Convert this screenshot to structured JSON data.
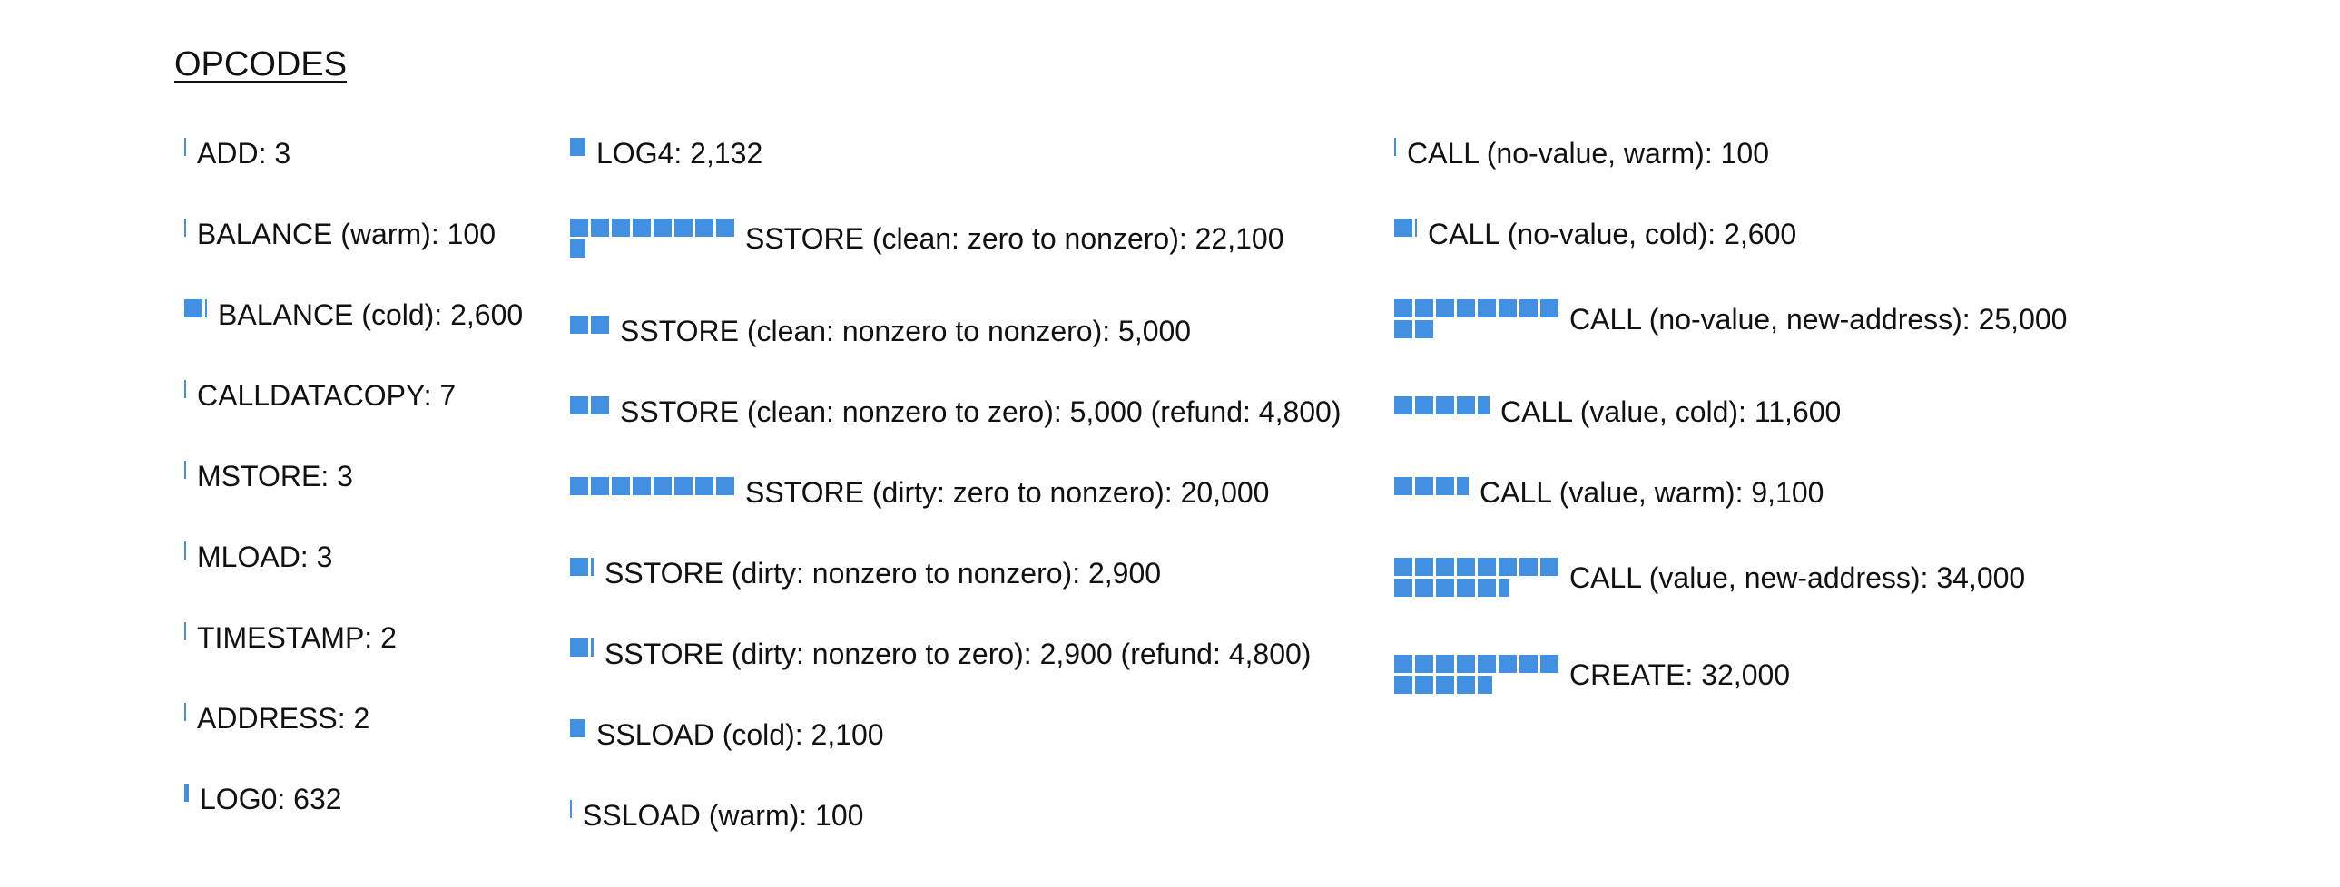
{
  "title": "OPCODES",
  "unit_gas": 2500,
  "bar_color": "#4190e1",
  "columns": [
    {
      "items": [
        {
          "label": "ADD: 3",
          "gas": 3
        },
        {
          "label": "BALANCE (warm): 100",
          "gas": 100
        },
        {
          "label": "BALANCE (cold): 2,600",
          "gas": 2600
        },
        {
          "label": "CALLDATACOPY: 7",
          "gas": 7
        },
        {
          "label": "MSTORE: 3",
          "gas": 3
        },
        {
          "label": "MLOAD: 3",
          "gas": 3
        },
        {
          "label": "TIMESTAMP: 2",
          "gas": 2
        },
        {
          "label": "ADDRESS: 2",
          "gas": 2
        },
        {
          "label": "LOG0: 632",
          "gas": 632
        }
      ]
    },
    {
      "items": [
        {
          "label": "LOG4: 2,132",
          "gas": 2132
        },
        {
          "label": "SSTORE (clean: zero to nonzero): 22,100",
          "gas": 22100
        },
        {
          "label": "SSTORE (clean: nonzero to nonzero): 5,000",
          "gas": 5000
        },
        {
          "label": "SSTORE (clean: nonzero to zero): 5,000 (refund: 4,800)",
          "gas": 5000
        },
        {
          "label": "SSTORE (dirty: zero to nonzero): 20,000",
          "gas": 20000
        },
        {
          "label": "SSTORE (dirty: nonzero to nonzero): 2,900",
          "gas": 2900
        },
        {
          "label": "SSTORE (dirty: nonzero to zero): 2,900 (refund: 4,800)",
          "gas": 2900
        },
        {
          "label": "SSLOAD (cold): 2,100",
          "gas": 2100
        },
        {
          "label": "SSLOAD (warm): 100",
          "gas": 100
        }
      ]
    },
    {
      "items": [
        {
          "label": "CALL (no-value, warm): 100",
          "gas": 100
        },
        {
          "label": "CALL (no-value, cold): 2,600",
          "gas": 2600
        },
        {
          "label": "CALL (no-value, new-address): 25,000",
          "gas": 25000
        },
        {
          "label": "CALL (value, cold): 11,600",
          "gas": 11600
        },
        {
          "label": "CALL (value, warm): 9,100",
          "gas": 9100
        },
        {
          "label": "CALL (value, new-address): 34,000",
          "gas": 34000
        },
        {
          "label": "CREATE: 32,000",
          "gas": 32000
        }
      ]
    }
  ]
}
